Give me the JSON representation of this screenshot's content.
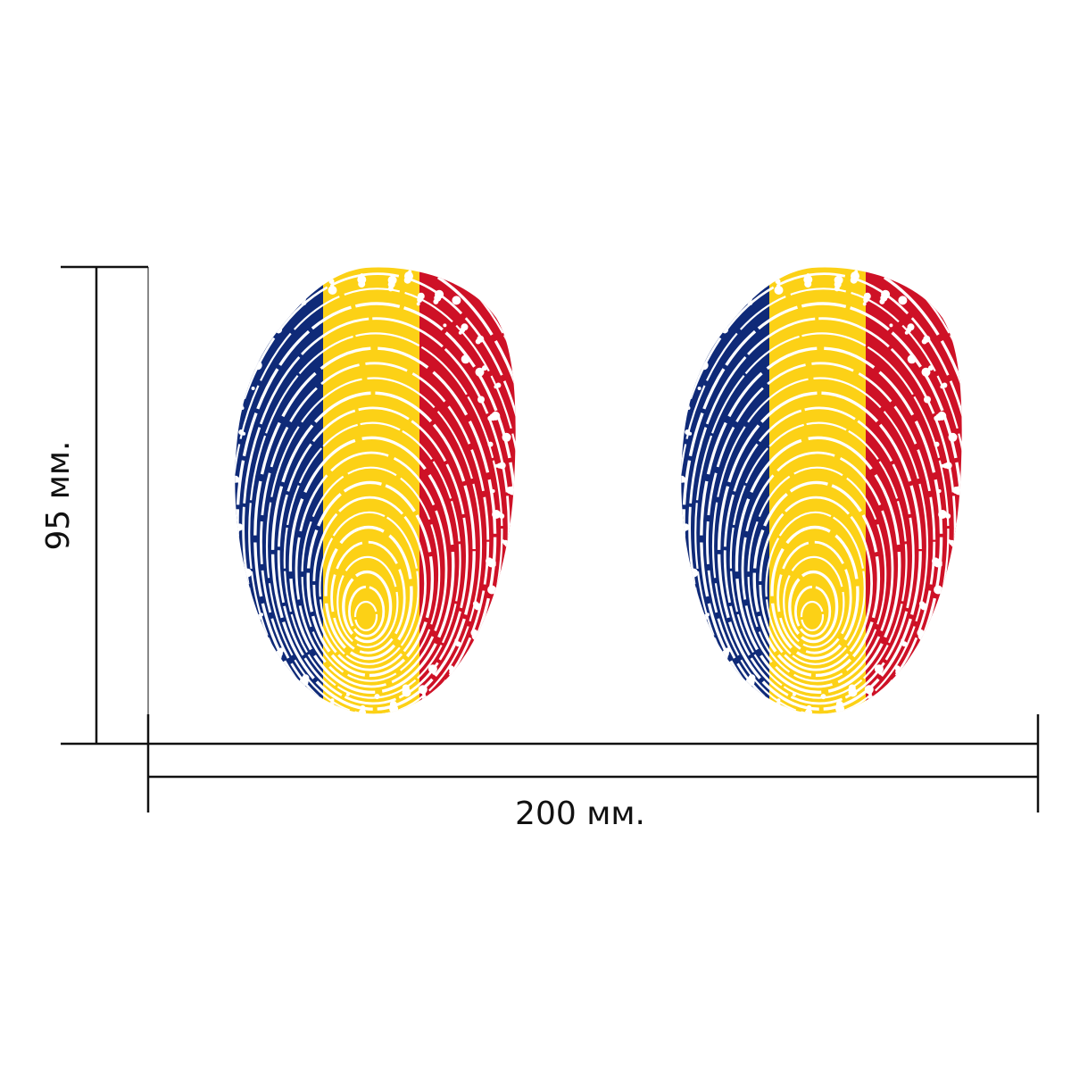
{
  "dimensions": {
    "width_label": "200 мм.",
    "height_label": "95 мм."
  },
  "sticker": {
    "count": 2,
    "motif": "fingerprint",
    "flag_colors": {
      "blue": "#0f2a78",
      "yellow": "#fcd116",
      "red": "#ce1126"
    }
  },
  "colors": {
    "line": "#111111",
    "background": "#ffffff"
  }
}
